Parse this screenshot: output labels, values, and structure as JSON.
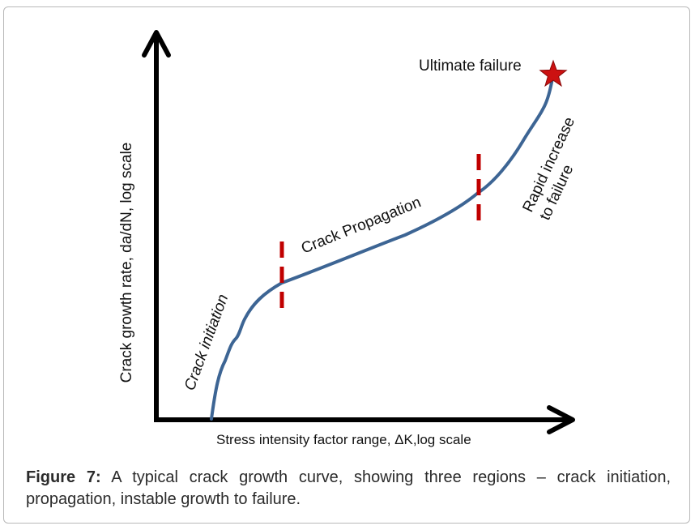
{
  "figure": {
    "axes": {
      "y_label": "Crack growth rate, da/dN, log scale",
      "x_label": "Stress intensity  factor range, ΔK,log scale"
    },
    "regions": {
      "initiation": "Crack initiation",
      "propagation": "Crack Propagation",
      "rapid_line1": "Rapid increase",
      "rapid_line2": "to failure"
    },
    "annotation": "Ultimate failure",
    "colors": {
      "axis": "#000000",
      "curve": "#3d6594",
      "divider": "#c00000",
      "star": "#cc1111"
    }
  },
  "caption": {
    "label": "Figure 7:",
    "text": " A typical crack growth curve, showing three regions – crack initiation, propagation, instable growth to failure."
  }
}
